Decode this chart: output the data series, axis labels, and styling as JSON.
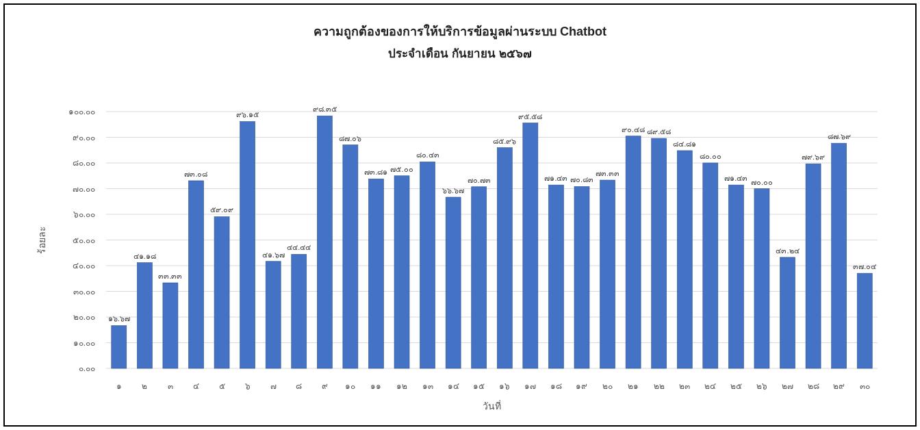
{
  "chart_data": {
    "type": "bar",
    "title": "ความถูกต้องของการให้บริการข้อมูลผ่านระบบ Chatbot",
    "subtitle": "ประจำเดือน กันยายน ๒๕๖๗",
    "xlabel": "วันที่",
    "ylabel": "ร้อยละ",
    "categories": [
      "๑",
      "๒",
      "๓",
      "๔",
      "๕",
      "๖",
      "๗",
      "๘",
      "๙",
      "๑๐",
      "๑๑",
      "๑๒",
      "๑๓",
      "๑๔",
      "๑๕",
      "๑๖",
      "๑๗",
      "๑๘",
      "๑๙",
      "๒๐",
      "๒๑",
      "๒๒",
      "๒๓",
      "๒๔",
      "๒๕",
      "๒๖",
      "๒๗",
      "๒๘",
      "๒๙",
      "๓๐"
    ],
    "values": [
      16.67,
      41.18,
      33.33,
      73.08,
      59.09,
      96.15,
      41.67,
      44.44,
      98.35,
      87.06,
      73.81,
      75.0,
      80.43,
      66.67,
      70.73,
      85.96,
      95.58,
      71.43,
      70.83,
      73.33,
      90.48,
      89.58,
      84.81,
      80.0,
      71.43,
      70.0,
      43.24,
      79.69,
      87.69,
      37.04
    ],
    "value_labels": [
      "๑๖.๖๗",
      "๔๑.๑๘",
      "๓๓.๓๓",
      "๗๓.๐๘",
      "๕๙.๐๙",
      "๙๖.๑๕",
      "๔๑.๖๗",
      "๔๔.๔๔",
      "๙๘.๓๕",
      "๘๗.๐๖",
      "๗๓.๘๑",
      "๗๕.๐๐",
      "๘๐.๔๓",
      "๖๖.๖๗",
      "๗๐.๗๓",
      "๘๕.๙๖",
      "๙๕.๕๘",
      "๗๑.๔๓",
      "๗๐.๘๓",
      "๗๓.๓๓",
      "๙๐.๔๘",
      "๘๙.๕๘",
      "๘๔.๘๑",
      "๘๐.๐๐",
      "๗๑.๔๓",
      "๗๐.๐๐",
      "๔๓.๒๔",
      "๗๙.๖๙",
      "๘๗.๖๙",
      "๓๗.๐๔"
    ],
    "color": "#4472c4",
    "ylim": [
      0,
      100
    ],
    "yticks": [
      {
        "value": 0,
        "label": "๐.๐๐"
      },
      {
        "value": 10,
        "label": "๑๐.๐๐"
      },
      {
        "value": 20,
        "label": "๒๐.๐๐"
      },
      {
        "value": 30,
        "label": "๓๐.๐๐"
      },
      {
        "value": 40,
        "label": "๔๐.๐๐"
      },
      {
        "value": 50,
        "label": "๕๐.๐๐"
      },
      {
        "value": 60,
        "label": "๖๐.๐๐"
      },
      {
        "value": 70,
        "label": "๗๐.๐๐"
      },
      {
        "value": 80,
        "label": "๘๐.๐๐"
      },
      {
        "value": 90,
        "label": "๙๐.๐๐"
      },
      {
        "value": 100,
        "label": "๑๐๐.๐๐"
      }
    ],
    "grid": "y"
  }
}
